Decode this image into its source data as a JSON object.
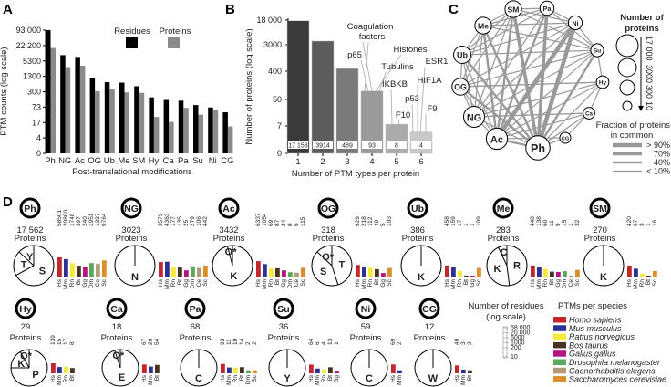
{
  "panel_a": {
    "label": "A",
    "title": "",
    "ylabel": "PTM counts (log scale)",
    "xlabel": "Post-translational modifications",
    "legend": [
      "Residues",
      "Proteins"
    ],
    "colors": {
      "residues": "#000000",
      "proteins": "#8a8a8a"
    },
    "yticks": [
      0,
      4,
      17,
      73,
      300,
      1300,
      5300,
      22200,
      93000
    ],
    "ytick_labels": [
      "0",
      "4",
      "17",
      "73",
      "300",
      "1300",
      "5300",
      "22 200",
      "93 000"
    ],
    "categories": [
      "Ph",
      "NG",
      "Ac",
      "OG",
      "Ub",
      "Me",
      "SM",
      "Hy",
      "Ca",
      "Pa",
      "Su",
      "Ni",
      "CG"
    ],
    "residues": [
      94818,
      9106,
      7700,
      1116,
      745,
      714,
      507,
      179,
      141,
      132,
      88,
      71,
      45
    ],
    "proteins": [
      17562,
      3023,
      3432,
      318,
      386,
      283,
      270,
      29,
      18,
      68,
      36,
      59,
      12
    ]
  },
  "panel_b": {
    "label": "B",
    "ylabel": "Number of proteins (log scale)",
    "xlabel": "Number of PTM types per protein",
    "yticks": [
      0,
      7,
      50,
      400,
      3000,
      18000
    ],
    "ytick_labels": [
      "0",
      "7",
      "50",
      "400",
      "3000",
      "18 000"
    ],
    "categories": [
      "1",
      "2",
      "3",
      "4",
      "5",
      "6"
    ],
    "values": [
      17158,
      3914,
      489,
      93,
      8,
      4
    ],
    "value_labels": [
      "17 158",
      "3914",
      "489",
      "93",
      "8",
      "4"
    ],
    "colors": [
      "#3a3a3a",
      "#5c5c5c",
      "#7a7a7a",
      "#9a9a9a",
      "#ababab",
      "#c9c9c9"
    ],
    "annotations": [
      {
        "text": "Coagulation",
        "bar": 4
      },
      {
        "text": "factors",
        "bar": 4
      },
      {
        "text": "Histones",
        "bar": 4
      },
      {
        "text": "p65",
        "bar": 4
      },
      {
        "text": "Tubulins",
        "bar": 4
      },
      {
        "text": "IKBKB",
        "bar": 5
      },
      {
        "text": "F10",
        "bar": 5
      },
      {
        "text": "ESR1",
        "bar": 6
      },
      {
        "text": "HIF1A",
        "bar": 6
      },
      {
        "text": "p53",
        "bar": 6
      },
      {
        "text": "F9",
        "bar": 6
      }
    ]
  },
  "panel_c": {
    "label": "C",
    "nodes": [
      {
        "id": "SM",
        "proteins": 270
      },
      {
        "id": "Pa",
        "proteins": 68
      },
      {
        "id": "Ni",
        "proteins": 59
      },
      {
        "id": "Su",
        "proteins": 36
      },
      {
        "id": "Hy",
        "proteins": 29
      },
      {
        "id": "Ca",
        "proteins": 18
      },
      {
        "id": "CG",
        "proteins": 12
      },
      {
        "id": "Ph",
        "proteins": 17562
      },
      {
        "id": "Ac",
        "proteins": 3432
      },
      {
        "id": "NG",
        "proteins": 3023
      },
      {
        "id": "OG",
        "proteins": 318
      },
      {
        "id": "Ub",
        "proteins": 386
      },
      {
        "id": "Me",
        "proteins": 283
      }
    ],
    "edges": [
      [
        "Ni",
        "Ac",
        0.95
      ],
      [
        "Ni",
        "Ph",
        0.95
      ],
      [
        "SM",
        "Ph",
        0.7
      ],
      [
        "Pa",
        "Ph",
        0.7
      ],
      [
        "Me",
        "Ac",
        0.4
      ],
      [
        "Ub",
        "Ph",
        0.4
      ],
      [
        "SM",
        "Ac",
        0.4
      ],
      [
        "Pa",
        "Ac",
        0.4
      ],
      [
        "Su",
        "Ph",
        0.4
      ],
      [
        "Hy",
        "Ph",
        0.1
      ],
      [
        "Ca",
        "Ph",
        0.1
      ],
      [
        "CG",
        "Ph",
        0.1
      ],
      [
        "OG",
        "Ph",
        0.4
      ],
      [
        "NG",
        "Ph",
        0.1
      ],
      [
        "Ac",
        "Ph",
        0.4
      ],
      [
        "Me",
        "Ph",
        0.4
      ],
      [
        "Ub",
        "Ac",
        0.1
      ],
      [
        "OG",
        "Ac",
        0.1
      ],
      [
        "SM",
        "Me",
        0.1
      ],
      [
        "SM",
        "Ub",
        0.1
      ],
      [
        "SM",
        "Ni",
        0.1
      ],
      [
        "SM",
        "Pa",
        0.1
      ],
      [
        "Pa",
        "Ni",
        0.1
      ],
      [
        "Pa",
        "Me",
        0.1
      ],
      [
        "Pa",
        "Ub",
        0.1
      ],
      [
        "Ni",
        "Su",
        0.1
      ],
      [
        "Ni",
        "Ub",
        0.1
      ],
      [
        "Ni",
        "OG",
        0.1
      ],
      [
        "Ni",
        "NG",
        0.1
      ],
      [
        "Su",
        "Ac",
        0.1
      ],
      [
        "Su",
        "NG",
        0.1
      ],
      [
        "Su",
        "OG",
        0.1
      ],
      [
        "Su",
        "Hy",
        0.1
      ],
      [
        "Hy",
        "Ca",
        0.1
      ],
      [
        "Hy",
        "NG",
        0.1
      ],
      [
        "Hy",
        "Ac",
        0.1
      ],
      [
        "Hy",
        "OG",
        0.1
      ],
      [
        "Ca",
        "NG",
        0.1
      ],
      [
        "Ca",
        "Ac",
        0.1
      ],
      [
        "Ca",
        "CG",
        0.1
      ],
      [
        "CG",
        "Ac",
        0.1
      ],
      [
        "Me",
        "NG",
        0.1
      ],
      [
        "Me",
        "OG",
        0.1
      ],
      [
        "Me",
        "Ub",
        0.1
      ],
      [
        "Ub",
        "OG",
        0.1
      ],
      [
        "Ub",
        "NG",
        0.1
      ],
      [
        "OG",
        "NG",
        0.1
      ],
      [
        "NG",
        "Ac",
        0.1
      ],
      [
        "SM",
        "NG",
        0.1
      ],
      [
        "SM",
        "OG",
        0.1
      ],
      [
        "Pa",
        "NG",
        0.1
      ],
      [
        "Pa",
        "Su",
        0.1
      ],
      [
        "Me",
        "Ni",
        0.1
      ],
      [
        "Ub",
        "Su",
        0.1
      ],
      [
        "OG",
        "Hy",
        0.1
      ],
      [
        "NG",
        "Ca",
        0.1
      ],
      [
        "Me",
        "Su",
        0.1
      ],
      [
        "SM",
        "Su",
        0.1
      ]
    ],
    "size_legend_title": [
      "Number of",
      "proteins"
    ],
    "size_legend_labels": [
      "17 000",
      "3000",
      "300",
      "10"
    ],
    "fraction_legend_title": [
      "Fraction of proteins",
      "in common"
    ],
    "fraction_legend_labels": [
      "> 90%",
      "70%",
      "40%",
      "< 10%"
    ],
    "fraction_values": [
      0.9,
      0.7,
      0.4,
      0.1
    ],
    "edge_color": "#9a9a9a"
  },
  "panel_d": {
    "label": "D",
    "proteins_word": "Proteins",
    "modules": [
      {
        "ptm": "Ph",
        "proteins": "17 562",
        "pie": [
          [
            "S",
            0.67
          ],
          [
            "T",
            0.2
          ],
          [
            "Y",
            0.13
          ]
        ],
        "species": [
          "Hs",
          "Mm",
          "Rn",
          "Bt",
          "Gg",
          "Dm",
          "Ce",
          "Sc"
        ],
        "counts": [
          58501,
          20880,
          1748,
          397,
          240,
          1951,
          1337,
          9764
        ]
      },
      {
        "ptm": "NG",
        "proteins": "3023",
        "pie": [
          [
            "N",
            1
          ]
        ],
        "species": [
          "Hs",
          "Mm",
          "Rn",
          "Bt",
          "Gg",
          "Dm",
          "Ce",
          "Sc"
        ],
        "counts": [
          3579,
          4363,
          177,
          135,
          25,
          279,
          106,
          442
        ]
      },
      {
        "ptm": "Ac",
        "proteins": "3432",
        "pie": [
          [
            "K",
            0.96
          ],
          [
            "O*",
            0.04
          ]
        ],
        "species": [
          "Hs",
          "Mm",
          "Rn",
          "Bt",
          "Gg",
          "Dm",
          "Ce",
          "Sc"
        ],
        "counts": [
          6337,
          1054,
          69,
          87,
          24,
          8,
          6,
          115
        ]
      },
      {
        "ptm": "OG",
        "proteins": "318",
        "pie": [
          [
            "T",
            0.45
          ],
          [
            "S",
            0.42
          ],
          [
            "O*",
            0.13
          ]
        ],
        "species": [
          "Hs",
          "Mm",
          "Rn",
          "Bt",
          "Gg",
          "Sc"
        ],
        "counts": [
          629,
          218,
          112,
          49,
          5,
          103
        ]
      },
      {
        "ptm": "Ub",
        "proteins": "386",
        "pie": [
          [
            "K",
            1
          ]
        ],
        "species": [
          "Hs",
          "Mm",
          "Rn",
          "Bt",
          "Gg",
          "Sc"
        ],
        "counts": [
          458,
          159,
          17,
          1,
          1,
          109
        ]
      },
      {
        "ptm": "Me",
        "proteins": "283",
        "pie": [
          [
            "R",
            0.48
          ],
          [
            "K",
            0.45
          ],
          [
            "C",
            0.07
          ]
        ],
        "species": [
          "Hs",
          "Mm",
          "Rn",
          "Bt",
          "Gg",
          "Dm",
          "Ce",
          "Sc"
        ],
        "counts": [
          448,
          138,
          60,
          11,
          9,
          15,
          1,
          32
        ]
      },
      {
        "ptm": "SM",
        "proteins": "270",
        "pie": [
          [
            "K",
            1
          ]
        ],
        "species": [
          "Hs",
          "Mm",
          "Rn",
          "Bt",
          "Sc"
        ],
        "counts": [
          420,
          67,
          3,
          1,
          16
        ]
      },
      {
        "ptm": "Hy",
        "proteins": "29",
        "pie": [
          [
            "P",
            0.75
          ],
          [
            "K",
            0.17
          ],
          [
            "O*",
            0.08
          ]
        ],
        "species": [
          "Hs",
          "Mm",
          "Rn",
          "Bt"
        ],
        "counts": [
          139,
          15,
          17,
          8
        ]
      },
      {
        "ptm": "Ca",
        "proteins": "18",
        "pie": [
          [
            "E",
            0.95
          ],
          [
            "O*",
            0.05
          ]
        ],
        "species": [
          "Hs",
          "Mm",
          "Bt"
        ],
        "counts": [
          67,
          20,
          54
        ]
      },
      {
        "ptm": "Pa",
        "proteins": "68",
        "pie": [
          [
            "C",
            1
          ]
        ],
        "species": [
          "Hs",
          "Mm",
          "Rn",
          "Bt",
          "Dm",
          "Sc"
        ],
        "counts": [
          93,
          11,
          10,
          14,
          2,
          2
        ]
      },
      {
        "ptm": "Su",
        "proteins": "36",
        "pie": [
          [
            "Y",
            1
          ]
        ],
        "species": [
          "Hs",
          "Mm",
          "Rn",
          "Bt",
          "Gg"
        ],
        "counts": [
          64,
          6,
          4,
          13,
          1
        ]
      },
      {
        "ptm": "Ni",
        "proteins": "59",
        "pie": [
          [
            "C",
            1
          ]
        ],
        "species": [
          "Hs",
          "Mm"
        ],
        "counts": [
          69,
          2
        ]
      },
      {
        "ptm": "CG",
        "proteins": "12",
        "pie": [
          [
            "W",
            1
          ]
        ],
        "species": [
          "Hs",
          "Mm",
          "Bt"
        ],
        "counts": [
          40,
          3,
          2
        ]
      }
    ],
    "residue_legend_title": [
      "Number of residues",
      "(log scale)"
    ],
    "residue_legend_ticks": [
      "58 000",
      "20 000",
      "6000",
      "1000",
      "200",
      "10"
    ],
    "species_legend_title": "PTMs per species",
    "species_legend": [
      {
        "code": "Hs",
        "name": "Homo sapiens",
        "color": "#c1272d"
      },
      {
        "code": "Mm",
        "name": "Mus musculus",
        "color": "#2e3192"
      },
      {
        "code": "Rn",
        "name": "Rattus norvegicus",
        "color": "#f5e93a"
      },
      {
        "code": "Bt",
        "name": "Bos taurus",
        "color": "#4a3421"
      },
      {
        "code": "Gg",
        "name": "Gallus gallus",
        "color": "#b5157f"
      },
      {
        "code": "Dm",
        "name": "Drosophila melanogaster",
        "color": "#5aa85a"
      },
      {
        "code": "Ce",
        "name": "Caenorhabditis elegans",
        "color": "#b49a78"
      },
      {
        "code": "Sc",
        "name": "Saccharomyces cerevisiae",
        "color": "#d98f2b"
      }
    ]
  }
}
